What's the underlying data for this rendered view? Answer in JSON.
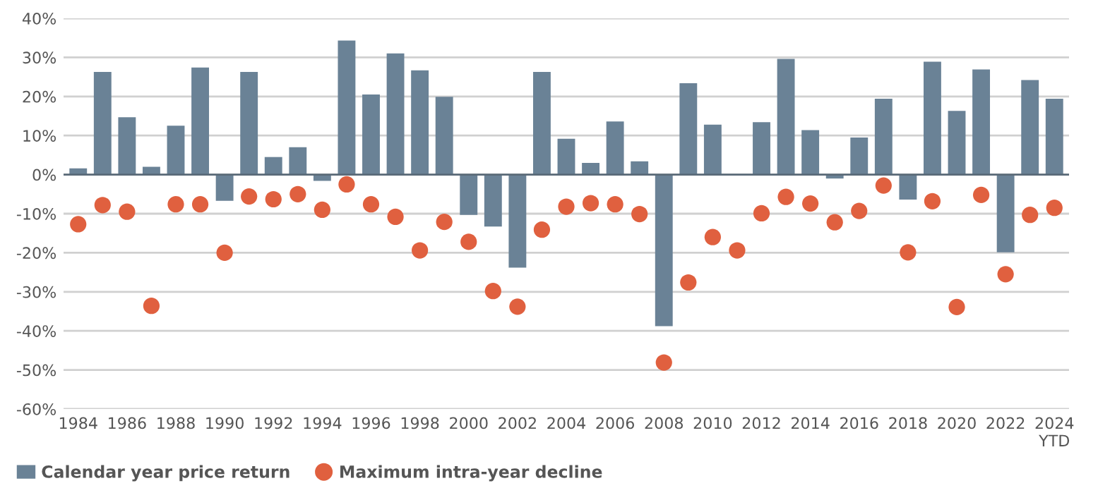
{
  "chart_data": {
    "type": "bar",
    "categories": [
      "1984",
      null,
      "1986",
      null,
      "1988",
      null,
      "1990",
      null,
      "1992",
      null,
      "1994",
      null,
      "1996",
      null,
      "1998",
      null,
      "2000",
      null,
      "2002",
      null,
      "2004",
      null,
      "2006",
      null,
      "2008",
      null,
      "2010",
      null,
      "2012",
      null,
      "2014",
      null,
      "2016",
      null,
      "2018",
      null,
      "2020",
      null,
      "2022",
      null,
      "2024\nYTD"
    ],
    "series": [
      {
        "name": "Calendar year price return",
        "color": "#6a8296",
        "values": [
          1.6,
          26.3,
          14.7,
          2.0,
          12.5,
          27.4,
          -6.7,
          26.3,
          4.5,
          7.0,
          -1.6,
          34.3,
          20.5,
          31.0,
          26.7,
          19.9,
          -10.3,
          -13.3,
          -23.8,
          26.3,
          9.2,
          3.0,
          13.6,
          3.4,
          -38.8,
          23.4,
          12.8,
          0,
          13.4,
          29.6,
          11.4,
          -1.0,
          9.5,
          19.4,
          -6.4,
          28.9,
          16.3,
          26.9,
          -19.9,
          24.2,
          19.4
        ]
      },
      {
        "name": "Maximum intra-year decline",
        "type": "scatter",
        "color": "#e0603f",
        "values": [
          -12.7,
          -7.8,
          -9.5,
          -33.6,
          -7.6,
          -7.6,
          -20.0,
          -5.6,
          -6.3,
          -5.0,
          -9.0,
          -2.5,
          -7.6,
          -10.8,
          -19.4,
          -12.1,
          -17.2,
          -29.8,
          -33.8,
          -14.1,
          -8.2,
          -7.3,
          -7.6,
          -10.1,
          -48.1,
          -27.6,
          -16.0,
          -19.4,
          -9.9,
          -5.7,
          -7.4,
          -12.2,
          -9.3,
          -2.8,
          -19.9,
          -6.8,
          -33.9,
          -5.2,
          -25.5,
          -10.3,
          -8.5
        ]
      }
    ],
    "ylim": [
      -60,
      40
    ],
    "yticks": [
      {
        "value": -60,
        "label": "-60%"
      },
      {
        "value": -50,
        "label": "-50%"
      },
      {
        "value": -40,
        "label": "-40%"
      },
      {
        "value": -30,
        "label": "-30%"
      },
      {
        "value": -20,
        "label": "-20%"
      },
      {
        "value": -10,
        "label": "-10%"
      },
      {
        "value": 0,
        "label": "0%"
      },
      {
        "value": 10,
        "label": "10%"
      },
      {
        "value": 20,
        "label": "20%"
      },
      {
        "value": 30,
        "label": "30%"
      },
      {
        "value": 40,
        "label": "40%"
      }
    ],
    "grid": "y",
    "legend": "bottom left",
    "marker": "circle"
  }
}
